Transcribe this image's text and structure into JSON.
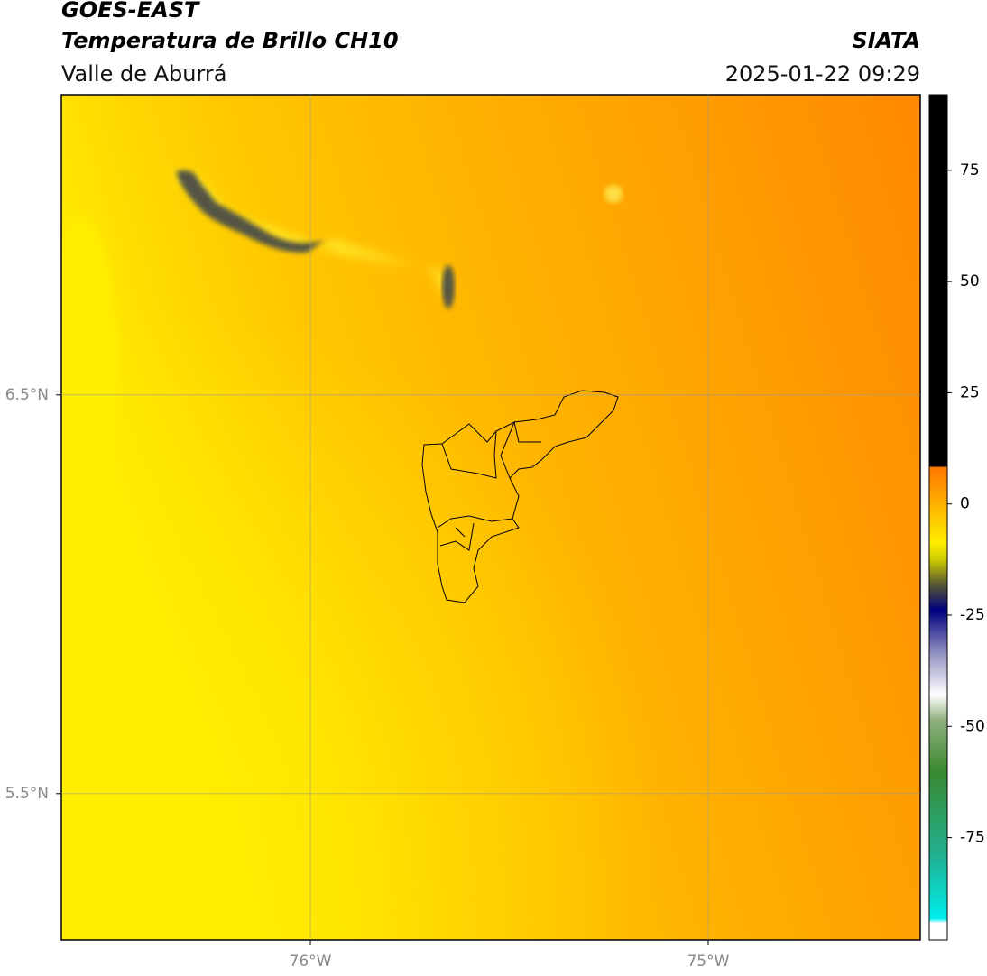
{
  "header": {
    "title": "GOES-EAST",
    "subtitle": "Temperatura de Brillo CH10",
    "region": "Valle de Aburrá",
    "source": "SIATA",
    "datetime": "2025-01-22 09:29"
  },
  "map": {
    "xlim": [
      -76.626,
      -74.467
    ],
    "ylim": [
      5.133,
      7.253
    ],
    "xticks": [
      {
        "value": -76,
        "label": "76°W"
      },
      {
        "value": -75,
        "label": "75°W"
      }
    ],
    "yticks": [
      {
        "value": 6.5,
        "label": "6.5°N"
      },
      {
        "value": 5.5,
        "label": "5.5°N"
      }
    ],
    "grid": true
  },
  "colorbar": {
    "clim": [
      -98,
      92
    ],
    "ticks": [
      75,
      50,
      25,
      0,
      -25,
      -50,
      -75
    ]
  }
}
